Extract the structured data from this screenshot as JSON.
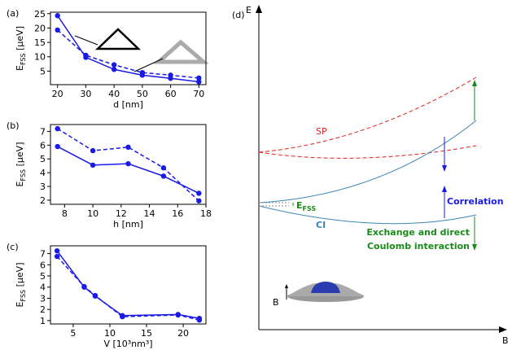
{
  "chart_data": [
    {
      "type": "line",
      "panel": "(a)",
      "xlabel": "d [nm]",
      "ylabel": "E",
      "ylabel_sub": "FSS",
      "ylabel_unit": " [μeV]",
      "x": [
        20,
        30,
        40,
        50,
        60,
        70
      ],
      "xlim": [
        17.5,
        72.5
      ],
      "xticks": [
        20,
        30,
        40,
        50,
        60,
        70
      ],
      "ylim": [
        0.3,
        25.5
      ],
      "yticks": [
        5,
        10,
        15,
        20,
        25
      ],
      "series": [
        {
          "color": "#1a1ae6",
          "linestyle": "solid",
          "values": [
            24.3,
            9.8,
            5.6,
            3.6,
            2.5,
            1.3
          ]
        },
        {
          "color": "#1a1ae6",
          "linestyle": "dashed",
          "values": [
            19.3,
            10.5,
            7.2,
            4.5,
            3.6,
            2.6
          ]
        }
      ]
    },
    {
      "type": "line",
      "panel": "(b)",
      "xlabel": "h [nm]",
      "ylabel": "E",
      "ylabel_sub": "FSS",
      "ylabel_unit": " [μeV]",
      "x": [
        7.5,
        10,
        12.5,
        15,
        17.5
      ],
      "xlim": [
        7,
        18
      ],
      "xticks": [
        8,
        10,
        12,
        14,
        16,
        18
      ],
      "ylim": [
        1.7,
        7.5
      ],
      "yticks": [
        2,
        3,
        4,
        5,
        6,
        7
      ],
      "series": [
        {
          "color": "#1a1ae6",
          "linestyle": "solid",
          "values": [
            5.9,
            4.55,
            4.65,
            3.75,
            2.5
          ]
        },
        {
          "color": "#1a1ae6",
          "linestyle": "dashed",
          "values": [
            7.2,
            5.6,
            5.85,
            4.35,
            1.95
          ]
        }
      ]
    },
    {
      "type": "line",
      "panel": "(c)",
      "xlabel": "V [10³nm³]",
      "ylabel": "E",
      "ylabel_sub": "FSS",
      "ylabel_unit": " [μeV]",
      "x": [
        2.8,
        6.5,
        8,
        11.7,
        19.3,
        22.2
      ],
      "xlim": [
        1.9,
        23.1
      ],
      "xticks": [
        5,
        10,
        15,
        20
      ],
      "ylim": [
        0.7,
        7.7
      ],
      "yticks": [
        1,
        2,
        3,
        4,
        5,
        6,
        7
      ],
      "series": [
        {
          "color": "#1a1ae6",
          "linestyle": "solid",
          "values": [
            7.25,
            4.0,
            3.2,
            1.45,
            1.55,
            1.2
          ]
        },
        {
          "color": "#1a1ae6",
          "linestyle": "dashed",
          "values": [
            6.75,
            4.05,
            3.25,
            1.35,
            1.5,
            1.05
          ]
        }
      ]
    }
  ],
  "panel_d": {
    "label": "(d)",
    "ylabel": "E",
    "xlabel": "B",
    "sp": "SP",
    "ci": "CI",
    "correlation": "Correlation",
    "efss": "E",
    "efss_sub": "FSS",
    "exchange": [
      "Exchange and direct",
      "Coulomb interaction"
    ],
    "field": "B"
  }
}
